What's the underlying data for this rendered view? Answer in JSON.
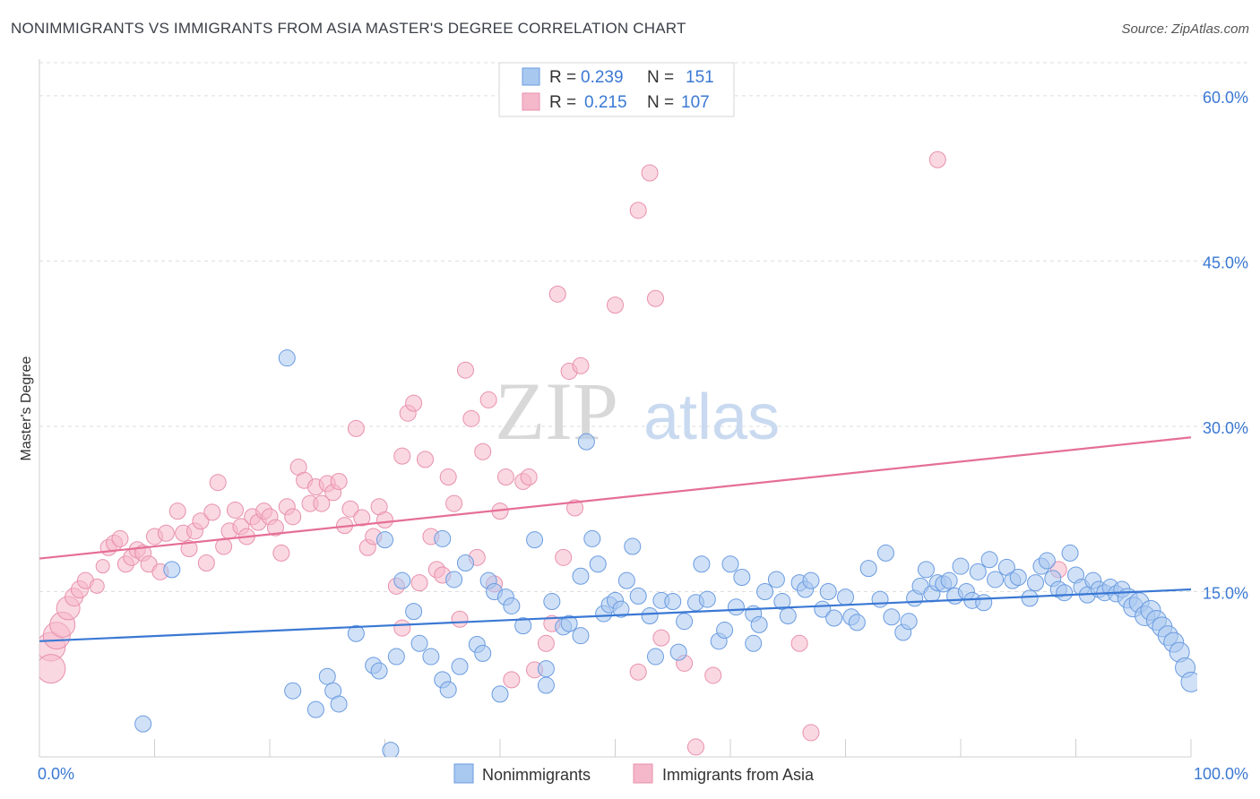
{
  "header": {
    "title": "NONIMMIGRANTS VS IMMIGRANTS FROM ASIA MASTER'S DEGREE CORRELATION CHART",
    "source": "Source: ZipAtlas.com"
  },
  "watermark": {
    "part1": "ZIP",
    "part2": "atlas"
  },
  "colors": {
    "blue": "#3a78d4",
    "pink": "#e56f97",
    "blue_fill": "#a9c8f0",
    "pink_fill": "#f5b8cb"
  },
  "chart_data": {
    "type": "scatter",
    "ylabel": "Master's Degree",
    "xlabel": "",
    "xlim": [
      0,
      100
    ],
    "ylim": [
      0,
      63
    ],
    "x_tick_labels": [
      "0.0%",
      "100.0%"
    ],
    "y_tick_labels": [
      {
        "value": 15,
        "label": "15.0%"
      },
      {
        "value": 30,
        "label": "30.0%"
      },
      {
        "value": 45,
        "label": "45.0%"
      },
      {
        "value": 60,
        "label": "60.0%"
      }
    ],
    "grid": true,
    "legend_top": [
      {
        "r_label": "R =",
        "r_value": "0.239",
        "n_label": "N =",
        "n_value": "151"
      },
      {
        "r_label": "R =",
        "r_value": "0.215",
        "n_label": "N =",
        "n_value": "107"
      }
    ],
    "legend_bottom": [
      "Nonimmigrants",
      "Immigrants from Asia"
    ],
    "series": [
      {
        "name": "Nonimmigrants",
        "trend": {
          "start": [
            0,
            10.5
          ],
          "end": [
            100,
            15.2
          ]
        },
        "points": [
          [
            11.5,
            17
          ],
          [
            21.5,
            36.2
          ],
          [
            9,
            3
          ],
          [
            22,
            6
          ],
          [
            25,
            7.3
          ],
          [
            24,
            4.3
          ],
          [
            25.5,
            6
          ],
          [
            26,
            4.8
          ],
          [
            27.5,
            11.2
          ],
          [
            29,
            8.3
          ],
          [
            29.5,
            7.8
          ],
          [
            30,
            19.7
          ],
          [
            30.5,
            0.6
          ],
          [
            31,
            9.1
          ],
          [
            31.5,
            16
          ],
          [
            32.5,
            13.2
          ],
          [
            33,
            10.3
          ],
          [
            34,
            9.1
          ],
          [
            35,
            7
          ],
          [
            35.5,
            6.1
          ],
          [
            35,
            19.8
          ],
          [
            36,
            16.1
          ],
          [
            36.5,
            8.2
          ],
          [
            37,
            17.6
          ],
          [
            38,
            10.2
          ],
          [
            38.5,
            9.4
          ],
          [
            39,
            16
          ],
          [
            39.5,
            15
          ],
          [
            40,
            5.7
          ],
          [
            40.5,
            14.5
          ],
          [
            41,
            13.7
          ],
          [
            42,
            11.9
          ],
          [
            43,
            19.7
          ],
          [
            44,
            8
          ],
          [
            44,
            6.5
          ],
          [
            44.5,
            14.1
          ],
          [
            45.5,
            11.8
          ],
          [
            46,
            12.1
          ],
          [
            47,
            16.4
          ],
          [
            47,
            11
          ],
          [
            47.5,
            28.6
          ],
          [
            48,
            19.8
          ],
          [
            48.5,
            17.5
          ],
          [
            49,
            13
          ],
          [
            49.5,
            13.8
          ],
          [
            50,
            14.2
          ],
          [
            50.5,
            13.4
          ],
          [
            51,
            16
          ],
          [
            51.5,
            19.1
          ],
          [
            52,
            14.6
          ],
          [
            53,
            12.8
          ],
          [
            53.5,
            9.1
          ],
          [
            54,
            14.2
          ],
          [
            55,
            14.1
          ],
          [
            55.5,
            9.5
          ],
          [
            56,
            12.3
          ],
          [
            57,
            14
          ],
          [
            57.5,
            17.5
          ],
          [
            58,
            14.3
          ],
          [
            59,
            10.5
          ],
          [
            59.5,
            11.5
          ],
          [
            60,
            17.5
          ],
          [
            60.5,
            13.6
          ],
          [
            61,
            16.3
          ],
          [
            62,
            13
          ],
          [
            62,
            10.3
          ],
          [
            62.5,
            12
          ],
          [
            63,
            15
          ],
          [
            64,
            16.1
          ],
          [
            64.5,
            14.1
          ],
          [
            65,
            12.8
          ],
          [
            66,
            15.8
          ],
          [
            66.5,
            15.2
          ],
          [
            67,
            16
          ],
          [
            68,
            13.4
          ],
          [
            68.5,
            15
          ],
          [
            69,
            12.6
          ],
          [
            70,
            14.5
          ],
          [
            70.5,
            12.7
          ],
          [
            71,
            12.2
          ],
          [
            72,
            17.1
          ],
          [
            73,
            14.3
          ],
          [
            73.5,
            18.5
          ],
          [
            74,
            12.7
          ],
          [
            75,
            11.3
          ],
          [
            75.5,
            12.3
          ],
          [
            76,
            14.4
          ],
          [
            76.5,
            15.5
          ],
          [
            77,
            17
          ],
          [
            77.5,
            14.8
          ],
          [
            78,
            15.8
          ],
          [
            78.5,
            15.7
          ],
          [
            79,
            16
          ],
          [
            79.5,
            14.6
          ],
          [
            80,
            17.3
          ],
          [
            80.5,
            15
          ],
          [
            81,
            14.2
          ],
          [
            81.5,
            16.8
          ],
          [
            82,
            14
          ],
          [
            82.5,
            17.9
          ],
          [
            83,
            16.1
          ],
          [
            84,
            17.2
          ],
          [
            84.5,
            16
          ],
          [
            85,
            16.3
          ],
          [
            86,
            14.4
          ],
          [
            86.5,
            15.8
          ],
          [
            87,
            17.3
          ],
          [
            87.5,
            17.8
          ],
          [
            88,
            16.2
          ],
          [
            88.5,
            15.2
          ],
          [
            89,
            14.9
          ],
          [
            89.5,
            18.5
          ],
          [
            90,
            16.5
          ],
          [
            90.5,
            15.4
          ],
          [
            91,
            14.7
          ],
          [
            91.5,
            16
          ],
          [
            92,
            15.2
          ],
          [
            92.5,
            14.9
          ],
          [
            93,
            15.4
          ],
          [
            93.5,
            14.8
          ],
          [
            94,
            15.2
          ],
          [
            94.5,
            14.4
          ],
          [
            95,
            13.6
          ],
          [
            95.5,
            14
          ],
          [
            96,
            12.8
          ],
          [
            96.5,
            13.3
          ],
          [
            97,
            12.4
          ],
          [
            97.5,
            11.8
          ],
          [
            98,
            11
          ],
          [
            98.5,
            10.4
          ],
          [
            99,
            9.5
          ],
          [
            99.5,
            8.1
          ],
          [
            100,
            6.8
          ]
        ]
      },
      {
        "name": "Immigrants from Asia",
        "trend": {
          "start": [
            0,
            18
          ],
          "end": [
            100,
            29
          ]
        },
        "points": [
          [
            1,
            10
          ],
          [
            1,
            8
          ],
          [
            1.5,
            11
          ],
          [
            2,
            12
          ],
          [
            2.5,
            13.5
          ],
          [
            3,
            14.5
          ],
          [
            3.5,
            15.2
          ],
          [
            4,
            16
          ],
          [
            5,
            15.5
          ],
          [
            5.5,
            17.3
          ],
          [
            6,
            19
          ],
          [
            6.5,
            19.4
          ],
          [
            7,
            19.8
          ],
          [
            7.5,
            17.5
          ],
          [
            8,
            18.1
          ],
          [
            8.5,
            18.8
          ],
          [
            9,
            18.5
          ],
          [
            9.5,
            17.5
          ],
          [
            10,
            20
          ],
          [
            10.5,
            16.8
          ],
          [
            11,
            20.3
          ],
          [
            12,
            22.3
          ],
          [
            12.5,
            20.3
          ],
          [
            13,
            18.9
          ],
          [
            13.5,
            20.5
          ],
          [
            14,
            21.4
          ],
          [
            14.5,
            17.6
          ],
          [
            15,
            22.2
          ],
          [
            15.5,
            24.9
          ],
          [
            16,
            19.1
          ],
          [
            16.5,
            20.5
          ],
          [
            17,
            22.4
          ],
          [
            17.5,
            20.9
          ],
          [
            18,
            20
          ],
          [
            18.5,
            21.8
          ],
          [
            19,
            21.3
          ],
          [
            19.5,
            22.3
          ],
          [
            20,
            21.8
          ],
          [
            20.5,
            20.8
          ],
          [
            21,
            18.5
          ],
          [
            21.5,
            22.7
          ],
          [
            22,
            21.8
          ],
          [
            22.5,
            26.3
          ],
          [
            23,
            25.1
          ],
          [
            23.5,
            23
          ],
          [
            24,
            24.5
          ],
          [
            24.5,
            23
          ],
          [
            25,
            24.8
          ],
          [
            25.5,
            24
          ],
          [
            26,
            25
          ],
          [
            26.5,
            21
          ],
          [
            27,
            22.5
          ],
          [
            27.5,
            29.8
          ],
          [
            28,
            21.7
          ],
          [
            28.5,
            19
          ],
          [
            29,
            20
          ],
          [
            29.5,
            22.7
          ],
          [
            30,
            21.5
          ],
          [
            31,
            15.5
          ],
          [
            31.5,
            27.3
          ],
          [
            31.5,
            11.7
          ],
          [
            32,
            31.2
          ],
          [
            32.5,
            32.1
          ],
          [
            33,
            15.8
          ],
          [
            33.5,
            27
          ],
          [
            34,
            20
          ],
          [
            34.5,
            17
          ],
          [
            35,
            16.5
          ],
          [
            35.5,
            25.4
          ],
          [
            36,
            23
          ],
          [
            36.5,
            12.5
          ],
          [
            37,
            35.1
          ],
          [
            37.5,
            30.7
          ],
          [
            38,
            18.1
          ],
          [
            38.5,
            27.7
          ],
          [
            39,
            32.4
          ],
          [
            39.5,
            15.7
          ],
          [
            40,
            22.3
          ],
          [
            40.5,
            25.4
          ],
          [
            41,
            7
          ],
          [
            42,
            25
          ],
          [
            42.5,
            25.4
          ],
          [
            43,
            7.9
          ],
          [
            44,
            10.3
          ],
          [
            44.5,
            12.1
          ],
          [
            45,
            42
          ],
          [
            45.5,
            18.1
          ],
          [
            46,
            35
          ],
          [
            46.5,
            22.6
          ],
          [
            47,
            35.5
          ],
          [
            50,
            41
          ],
          [
            52,
            7.7
          ],
          [
            52,
            49.6
          ],
          [
            53,
            53
          ],
          [
            53.5,
            41.6
          ],
          [
            54,
            10.8
          ],
          [
            56,
            8.5
          ],
          [
            57,
            0.9
          ],
          [
            58.5,
            7.4
          ],
          [
            66,
            10.3
          ],
          [
            67,
            2.2
          ],
          [
            78,
            54.2
          ],
          [
            88.5,
            17
          ]
        ]
      }
    ]
  }
}
